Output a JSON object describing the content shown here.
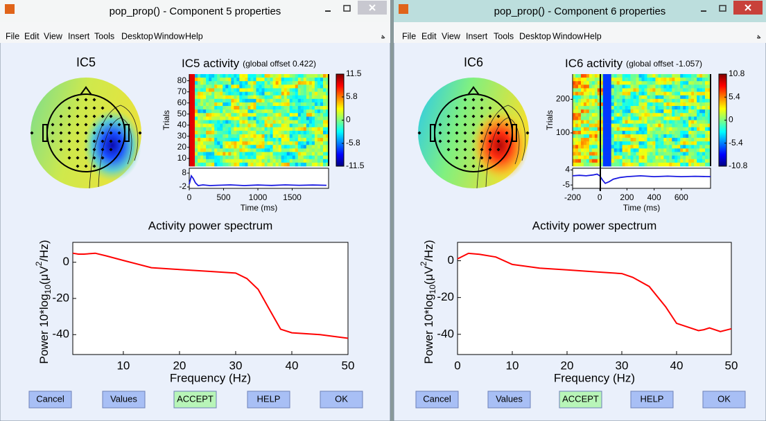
{
  "windows": [
    {
      "title": "pop_prop() - Component 5 properties",
      "menu": [
        "File",
        "Edit",
        "View",
        "Insert",
        "Tools",
        "Desktop",
        "Window",
        "Help"
      ],
      "topo_label": "IC5",
      "erp": {
        "title": "IC5 activity",
        "subtitle": "(global offset 0.422)",
        "ylabel": "Trials",
        "xlabel": "Time (ms)",
        "ylim": [
          3,
          86
        ],
        "yticks": [
          10,
          20,
          30,
          40,
          50,
          60,
          70,
          80
        ],
        "xlim": [
          0,
          2030
        ],
        "xticks": [
          0,
          500,
          1000,
          1500
        ],
        "clim": [
          -11.5,
          11.5
        ],
        "cticks": [
          11.5,
          5.8,
          0,
          -5.8,
          -11.5
        ],
        "trace": {
          "ylim": [
            -3,
            11.5
          ],
          "yticks": [
            8,
            -2
          ],
          "color": "#1818e0",
          "x": [
            0,
            30,
            60,
            90,
            130,
            200,
            300,
            400,
            600,
            800,
            1000,
            1200,
            1400,
            1600,
            1800,
            2000
          ],
          "values": [
            0,
            6,
            4,
            1,
            -1,
            -0.5,
            -1,
            -0.8,
            -0.5,
            -1,
            -0.6,
            -0.9,
            -0.5,
            -0.8,
            -0.6,
            -0.8
          ]
        }
      },
      "spectrum": {
        "type": "line",
        "title": "Activity power spectrum",
        "xlabel": "Frequency (Hz)",
        "ylabel": [
          "Power 10*log",
          "10",
          "(μV",
          "2",
          "/Hz)"
        ],
        "xlim": [
          1,
          50
        ],
        "xticks": [
          10,
          20,
          30,
          40,
          50
        ],
        "ylim": [
          -51,
          11
        ],
        "yticks": [
          0,
          -20,
          -40
        ],
        "color": "#ff0000",
        "x": [
          1,
          2,
          3,
          5,
          7,
          10,
          15,
          20,
          25,
          30,
          32,
          34,
          36,
          38,
          40,
          45,
          50
        ],
        "values": [
          5,
          4.5,
          4.5,
          5,
          3.5,
          1,
          -3,
          -4,
          -5,
          -6,
          -9,
          -15,
          -26,
          -37,
          -39,
          -40,
          -42
        ]
      },
      "buttons": [
        "Cancel",
        "Values",
        "ACCEPT",
        "HELP",
        "OK"
      ]
    },
    {
      "title": "pop_prop() - Component 6 properties",
      "menu": [
        "File",
        "Edit",
        "View",
        "Insert",
        "Tools",
        "Desktop",
        "Window",
        "Help"
      ],
      "topo_label": "IC6",
      "erp": {
        "title": "IC6 activity",
        "subtitle": "(global offset -1.057)",
        "ylabel": "Trials",
        "xlabel": "Time (ms)",
        "ylim": [
          1,
          275
        ],
        "yticks": [
          100,
          200
        ],
        "xlim": [
          -200,
          815
        ],
        "xticks": [
          -200,
          0,
          200,
          400,
          600
        ],
        "clim": [
          -10.8,
          10.8
        ],
        "cticks": [
          10.8,
          5.4,
          0,
          -5.4,
          -10.8
        ],
        "trace": {
          "ylim": [
            -7,
            5
          ],
          "yticks": [
            4,
            -5
          ],
          "color": "#1818e0",
          "x": [
            -200,
            -150,
            -100,
            -50,
            -20,
            0,
            20,
            40,
            70,
            100,
            150,
            200,
            300,
            400,
            500,
            600,
            700,
            815
          ],
          "values": [
            0.5,
            0.8,
            0.5,
            1,
            1.5,
            0.5,
            -2,
            -4,
            -3,
            -1.5,
            -0.5,
            0,
            0.5,
            0,
            0.3,
            0,
            0.2,
            0
          ]
        }
      },
      "spectrum": {
        "type": "line",
        "title": "Activity power spectrum",
        "xlabel": "Frequency (Hz)",
        "ylabel": [
          "Power 10*log",
          "10",
          "(μV",
          "2",
          "/Hz)"
        ],
        "xlim": [
          0,
          50
        ],
        "xticks": [
          0,
          10,
          20,
          30,
          40,
          50
        ],
        "ylim": [
          -51,
          10
        ],
        "yticks": [
          0,
          -20,
          -40
        ],
        "color": "#ff0000",
        "x": [
          0,
          2,
          4,
          7,
          10,
          15,
          20,
          25,
          30,
          32,
          35,
          38,
          40,
          42,
          44,
          45,
          46,
          48,
          50
        ],
        "values": [
          1,
          4,
          3.5,
          2,
          -2,
          -4,
          -5,
          -6,
          -7,
          -9,
          -14,
          -25,
          -34,
          -36,
          -38,
          -37.5,
          -36.5,
          -38.5,
          -37
        ]
      },
      "buttons": [
        "Cancel",
        "Values",
        "ACCEPT",
        "HELP",
        "OK"
      ]
    }
  ]
}
